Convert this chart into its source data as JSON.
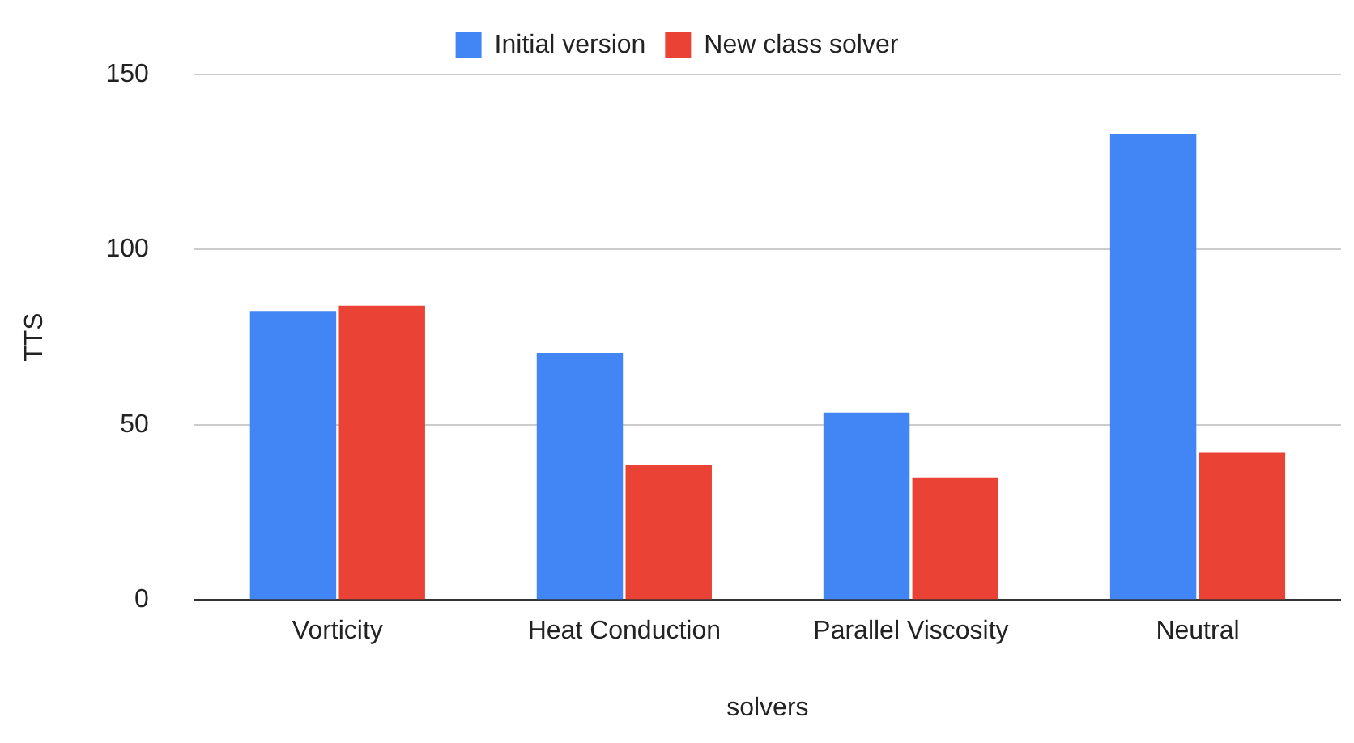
{
  "chart_data": {
    "type": "bar",
    "xlabel": "solvers",
    "ylabel": "TTS",
    "categories": [
      "Vorticity",
      "Heat Conduction",
      "Parallel Viscosity",
      "Neutral"
    ],
    "series": [
      {
        "name": "Initial version",
        "color": "#4285f4",
        "values": [
          82.5,
          70.5,
          53.5,
          133
        ]
      },
      {
        "name": "New class solver",
        "color": "#ea4335",
        "values": [
          84,
          38.5,
          35,
          42
        ]
      }
    ],
    "ylim": [
      0,
      150
    ],
    "yticks": [
      0,
      50,
      100,
      150
    ],
    "grid": "y",
    "legend": "top"
  }
}
